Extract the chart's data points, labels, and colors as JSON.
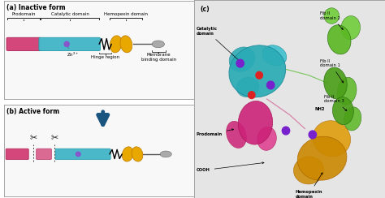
{
  "fig_width": 4.74,
  "fig_height": 2.44,
  "dpi": 100,
  "bg_color": "#ffffff",
  "panel_a_title": "(a) Inactive form",
  "panel_b_title": "(b) Active form",
  "panel_c_title": "(c)",
  "colors": {
    "prodomain": "#d4477a",
    "catalytic": "#4ab8c8",
    "hemopexin": "#e8a800",
    "membrane": "#aaaaaa",
    "zn": "#8855cc",
    "arrow_color": "#1a5580",
    "panel_bg_ab": "#f8f8f8",
    "panel_bg_c": "#f0f0f0",
    "teal": "#2aabb5",
    "pink": "#cc3377",
    "green": "#5aaa20",
    "gold": "#cc8800",
    "red_dot": "#dd2222",
    "purple_dot": "#7722cc"
  }
}
